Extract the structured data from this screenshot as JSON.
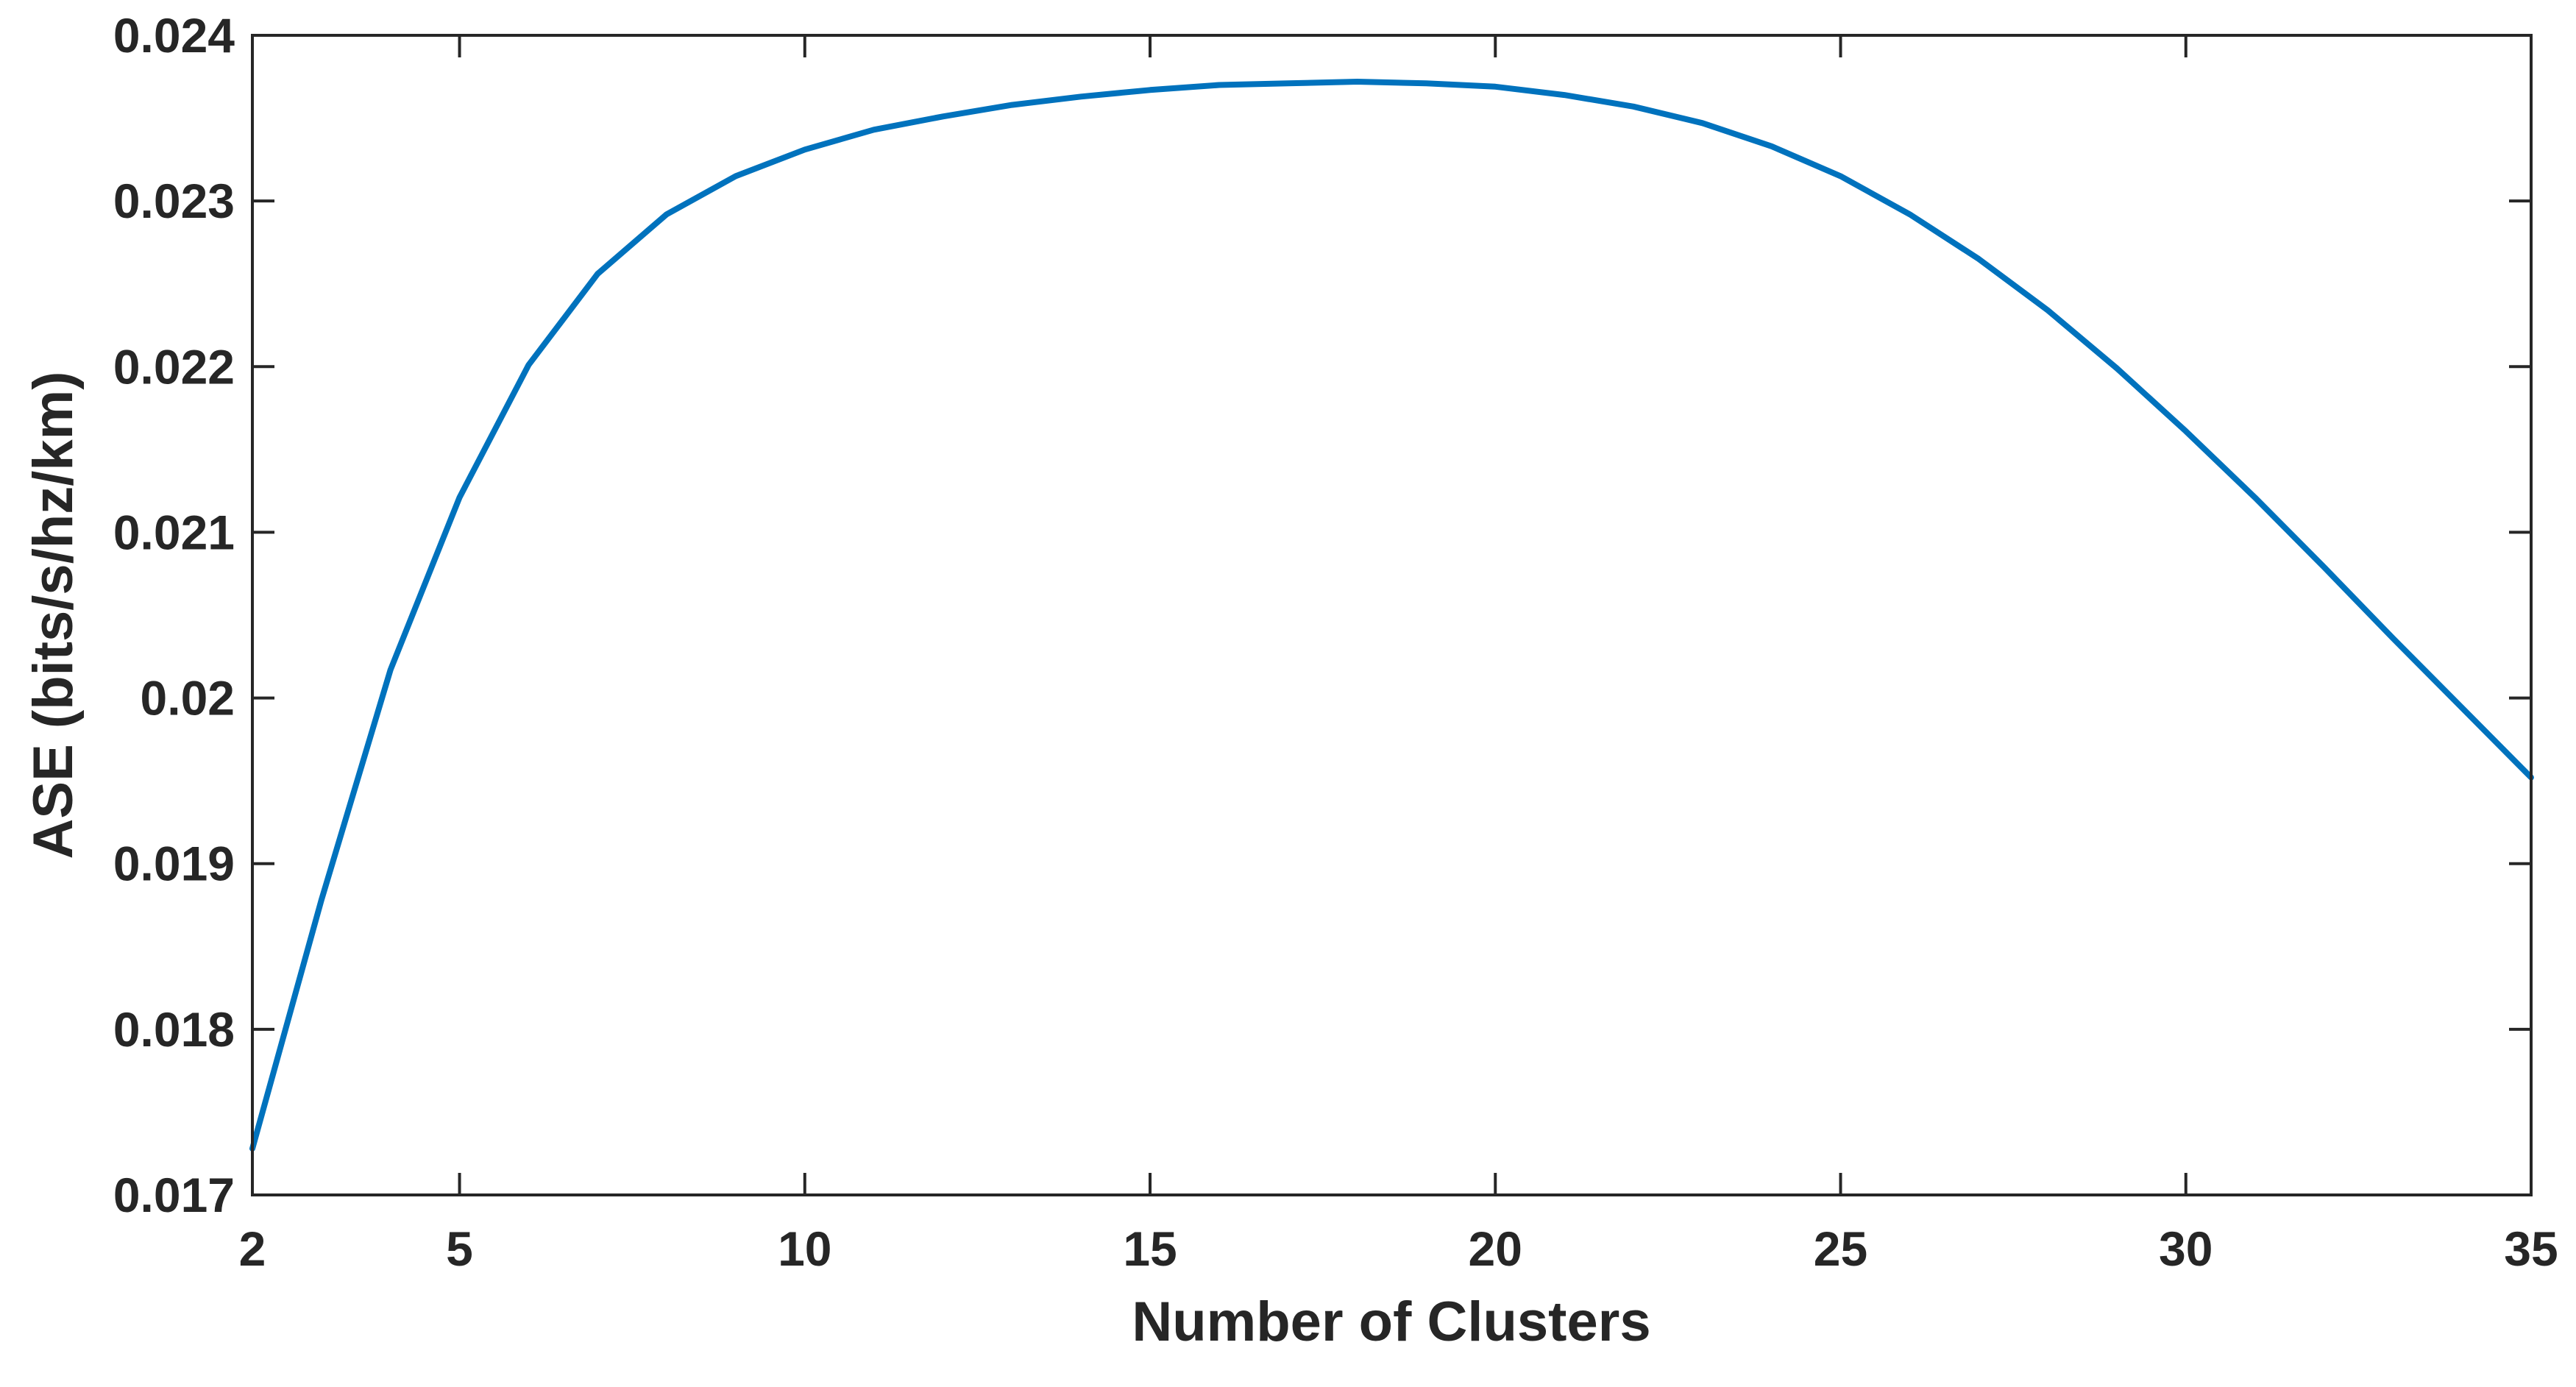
{
  "chart_data": {
    "type": "line",
    "title": "",
    "xlabel": "Number of Clusters",
    "ylabel": "ASE (bits/s/hz/km)",
    "xlim": [
      2,
      35
    ],
    "ylim": [
      0.017,
      0.024
    ],
    "x_ticks": [
      2,
      5,
      10,
      15,
      20,
      25,
      30,
      35
    ],
    "x_tick_labels": [
      "2",
      "5",
      "10",
      "15",
      "20",
      "25",
      "30",
      "35"
    ],
    "y_ticks": [
      0.017,
      0.018,
      0.019,
      0.02,
      0.021,
      0.022,
      0.023,
      0.024
    ],
    "y_tick_labels": [
      "0.017",
      "0.018",
      "0.019",
      "0.02",
      "0.021",
      "0.022",
      "0.023",
      "0.024"
    ],
    "grid": false,
    "legend": "none",
    "line_color": "#0072BD",
    "series": [
      {
        "x": [
          2,
          3,
          4,
          5,
          6,
          7,
          8,
          9,
          10,
          11,
          12,
          13,
          14,
          15,
          16,
          17,
          18,
          19,
          20,
          21,
          22,
          23,
          24,
          25,
          26,
          27,
          28,
          29,
          30,
          31,
          32,
          33,
          34,
          35
        ],
        "values": [
          0.01728,
          0.01878,
          0.02017,
          0.02121,
          0.02201,
          0.02256,
          0.02292,
          0.02315,
          0.02331,
          0.02343,
          0.02351,
          0.02358,
          0.02363,
          0.02367,
          0.0237,
          0.02371,
          0.02372,
          0.02371,
          0.02369,
          0.02364,
          0.02357,
          0.02347,
          0.02333,
          0.02315,
          0.02292,
          0.02265,
          0.02234,
          0.02199,
          0.02161,
          0.02121,
          0.02079,
          0.02036,
          0.01994,
          0.01952
        ]
      }
    ]
  }
}
